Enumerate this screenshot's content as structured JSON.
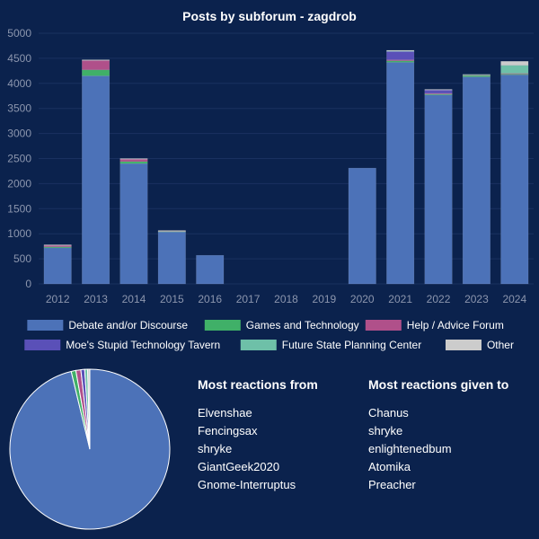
{
  "chart_data": [
    {
      "type": "bar",
      "stacked": true,
      "title": "Posts by subforum - zagdrob",
      "categories": [
        "2012",
        "2013",
        "2014",
        "2015",
        "2016",
        "2017",
        "2018",
        "2019",
        "2020",
        "2021",
        "2022",
        "2023",
        "2024"
      ],
      "ylim": [
        0,
        5000
      ],
      "yticks": [
        0,
        500,
        1000,
        1500,
        2000,
        2500,
        3000,
        3500,
        4000,
        4500,
        5000
      ],
      "grid": true,
      "legend_position": "bottom",
      "series": [
        {
          "name": "Debate and/or Discourse",
          "color": "#4c72b8",
          "values": [
            720,
            4150,
            2400,
            1040,
            570,
            0,
            0,
            0,
            2310,
            4420,
            3770,
            4130,
            4170
          ]
        },
        {
          "name": "Games and Technology",
          "color": "#40b068",
          "values": [
            20,
            120,
            40,
            10,
            0,
            0,
            0,
            0,
            0,
            30,
            20,
            30,
            20
          ]
        },
        {
          "name": "Help / Advice Forum",
          "color": "#b0508a",
          "values": [
            30,
            190,
            50,
            10,
            0,
            0,
            0,
            0,
            0,
            20,
            10,
            10,
            10
          ]
        },
        {
          "name": "Moe's Stupid Technology Tavern",
          "color": "#5a50b8",
          "values": [
            0,
            0,
            0,
            0,
            0,
            0,
            0,
            0,
            0,
            170,
            70,
            0,
            0
          ]
        },
        {
          "name": "Future State Planning Center",
          "color": "#6ec0a8",
          "values": [
            0,
            0,
            0,
            0,
            0,
            0,
            0,
            0,
            0,
            10,
            0,
            10,
            160
          ]
        },
        {
          "name": "Other",
          "color": "#cccccc",
          "values": [
            10,
            10,
            10,
            5,
            0,
            0,
            0,
            0,
            0,
            10,
            10,
            0,
            80
          ]
        }
      ]
    },
    {
      "type": "pie",
      "labels": [
        "Debate and/or Discourse",
        "Games and Technology",
        "Help / Advice Forum",
        "Moe's Stupid Technology Tavern",
        "Future State Planning Center",
        "Other"
      ],
      "values": [
        29680,
        290,
        310,
        240,
        180,
        135
      ],
      "colors": [
        "#4c72b8",
        "#40b068",
        "#b0508a",
        "#5a50b8",
        "#6ec0a8",
        "#cccccc"
      ]
    }
  ],
  "reactions_from": {
    "heading": "Most reactions from",
    "names": [
      "Elvenshae",
      "Fencingsax",
      "shryke",
      "GiantGeek2020",
      "Gnome-Interruptus"
    ]
  },
  "reactions_to": {
    "heading": "Most reactions given to",
    "names": [
      "Chanus",
      "shryke",
      "enlightenedbum",
      "Atomika",
      "Preacher"
    ]
  }
}
